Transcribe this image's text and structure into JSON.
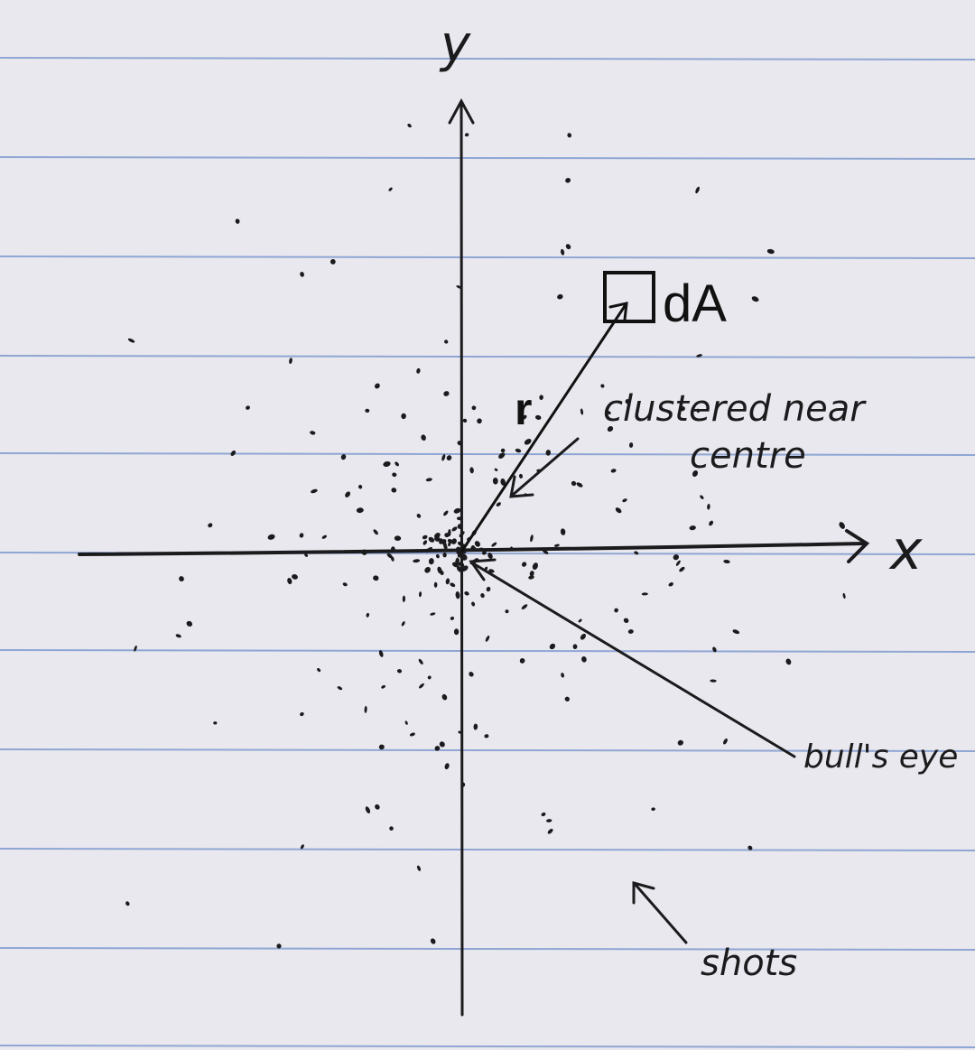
{
  "diagram": {
    "axis_x_label": "x",
    "axis_y_label": "y",
    "area_element_label": "dA",
    "radius_label": "r",
    "annotation_cluster_line1": "clustered near",
    "annotation_cluster_line2": "centre",
    "annotation_bullseye": "bull's eye",
    "annotation_shots": "shots"
  },
  "colors": {
    "paper": "#e9e8ee",
    "rule_line": "#8fa6d4",
    "ink": "#1b1b1d"
  },
  "icons": {
    "area_element": "square-outline-icon",
    "arrowheads": "arrow-icon"
  }
}
